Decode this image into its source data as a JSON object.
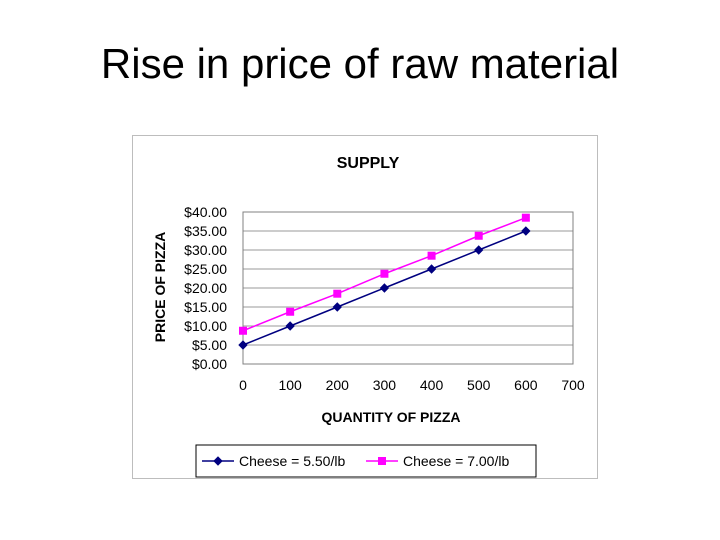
{
  "slide": {
    "title": "Rise in price of raw material"
  },
  "chart_data": {
    "type": "line",
    "title": "SUPPLY",
    "xlabel": "QUANTITY OF PIZZA",
    "ylabel": "PRICE OF PIZZA",
    "x": [
      0,
      100,
      200,
      300,
      400,
      500,
      600
    ],
    "xlim": [
      0,
      700
    ],
    "ylim": [
      0,
      40
    ],
    "x_ticks": [
      "0",
      "100",
      "200",
      "300",
      "400",
      "500",
      "600",
      "700"
    ],
    "y_ticks": [
      "$0.00",
      "$5.00",
      "$10.00",
      "$15.00",
      "$20.00",
      "$25.00",
      "$30.00",
      "$35.00",
      "$40.00"
    ],
    "grid": true,
    "legend_position": "bottom",
    "series": [
      {
        "name": "Cheese = 5.50/lb",
        "values": [
          5,
          10,
          15,
          20,
          25,
          30,
          35
        ],
        "color": "#000080",
        "marker": "diamond"
      },
      {
        "name": "Cheese = 7.00/lb",
        "values": [
          8.75,
          13.75,
          18.5,
          23.75,
          28.5,
          33.75,
          38.5
        ],
        "color": "#ff00ff",
        "marker": "square"
      }
    ]
  }
}
